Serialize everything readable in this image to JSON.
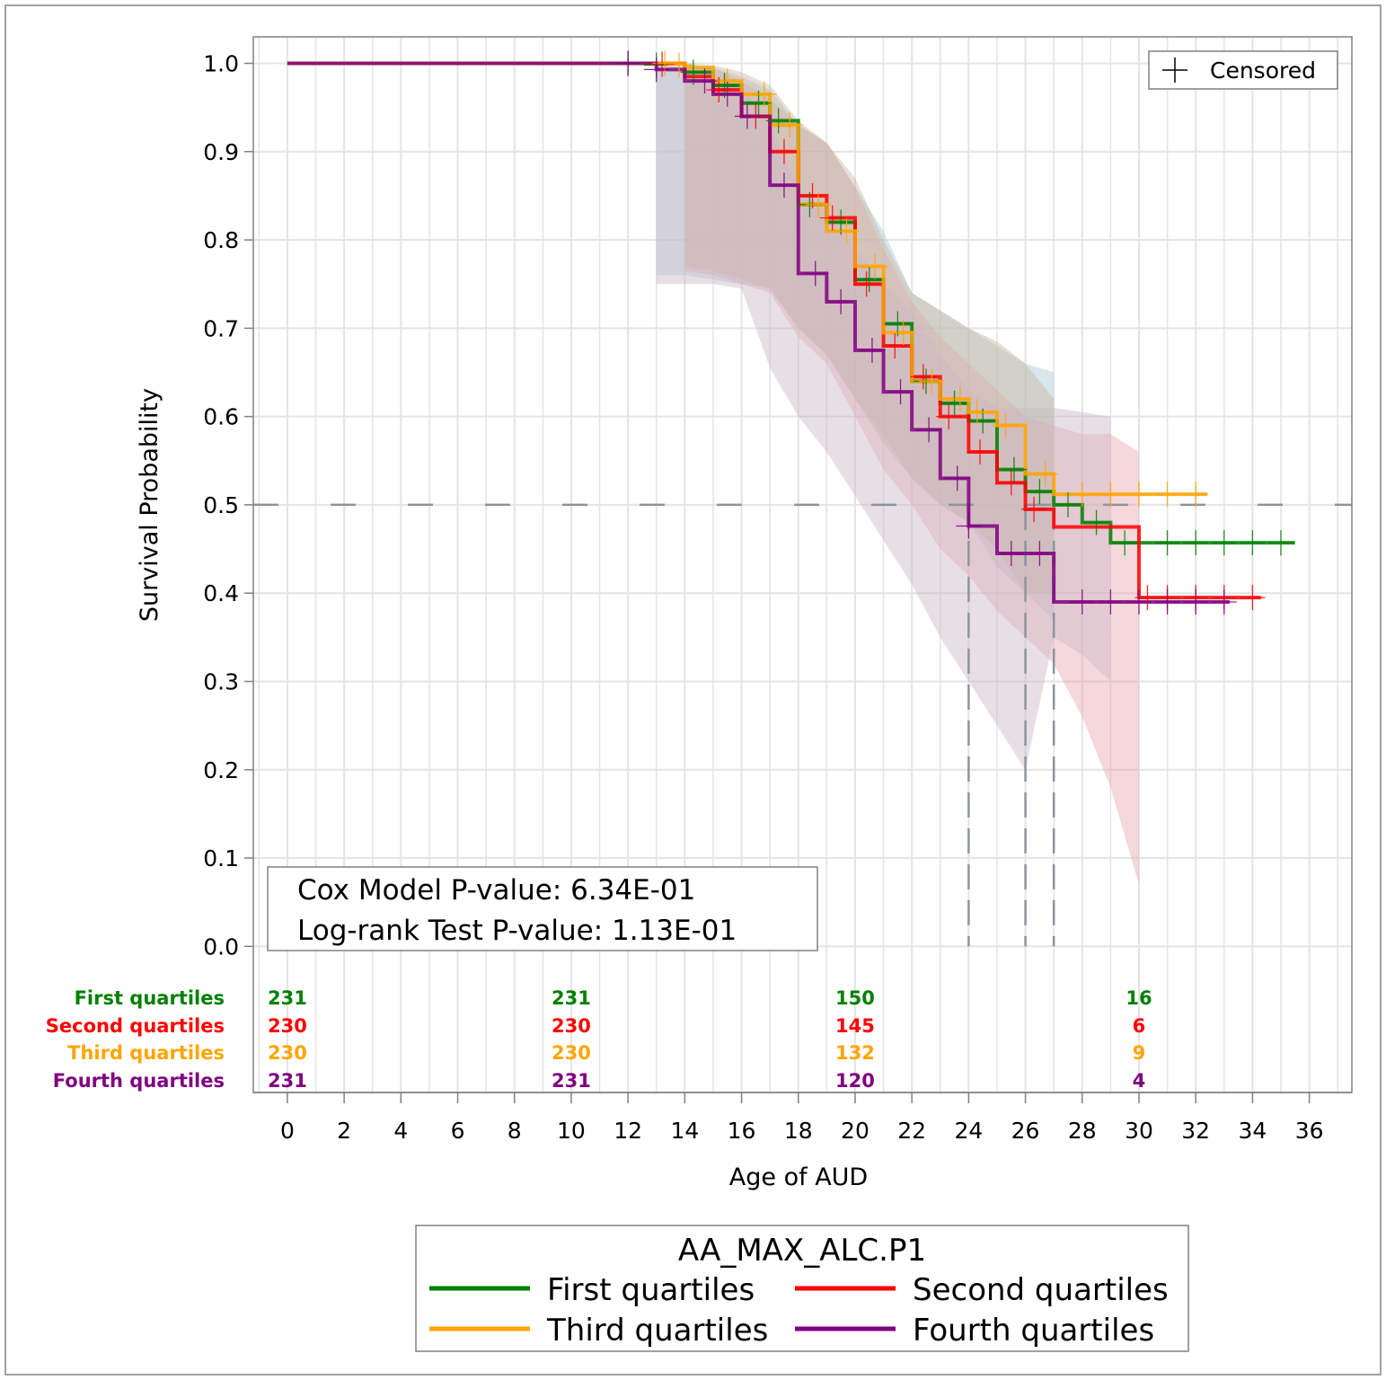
{
  "chart_data": {
    "type": "line",
    "subtype": "kaplan-meier survival curves with confidence bands, censor marks and number-at-risk table",
    "xlabel": "Age of AUD",
    "ylabel": "Survival Probability",
    "xlim": [
      -1.2,
      37.5
    ],
    "ylim": [
      -0.02,
      1.03
    ],
    "x_ticks": [
      0,
      2,
      4,
      6,
      8,
      10,
      12,
      14,
      16,
      18,
      20,
      22,
      24,
      26,
      28,
      30,
      32,
      34,
      36
    ],
    "y_ticks": [
      0.0,
      0.1,
      0.2,
      0.3,
      0.4,
      0.5,
      0.6,
      0.7,
      0.8,
      0.9,
      1.0
    ],
    "y_tick_labels": [
      "0.0",
      "0.1",
      "0.2",
      "0.3",
      "0.4",
      "0.5",
      "0.6",
      "0.7",
      "0.8",
      "0.9",
      "1.0"
    ],
    "grid": true,
    "median_reference": {
      "y": 0.5,
      "median_x": [
        24,
        26,
        27
      ]
    },
    "censor_legend": {
      "label": "Censored",
      "position": "top-right"
    },
    "stats_box": {
      "line1": "Cox Model P-value:  6.34E-01",
      "line2": "Log-rank Test P-value:  1.13E-01",
      "position": "bottom-left"
    },
    "legend": {
      "title": "AA_MAX_ALC.P1",
      "position": "bottom",
      "entries": [
        "First quartiles",
        "Second quartiles",
        "Third quartiles",
        "Fourth quartiles"
      ]
    },
    "series": [
      {
        "name": "First quartiles",
        "color": "#008000",
        "band_color": "#a9c8d6",
        "steps": [
          [
            0,
            1.0
          ],
          [
            14,
            0.99
          ],
          [
            15,
            0.975
          ],
          [
            16,
            0.955
          ],
          [
            17,
            0.935
          ],
          [
            18,
            0.84
          ],
          [
            19,
            0.82
          ],
          [
            20,
            0.755
          ],
          [
            21,
            0.705
          ],
          [
            22,
            0.64
          ],
          [
            23,
            0.615
          ],
          [
            24,
            0.595
          ],
          [
            25,
            0.54
          ],
          [
            26,
            0.515
          ],
          [
            27,
            0.5
          ],
          [
            28,
            0.48
          ],
          [
            29,
            0.457
          ],
          [
            35.5,
            0.457
          ]
        ],
        "band": [
          [
            13,
            1.0,
            0.76
          ],
          [
            14,
            0.999,
            0.76
          ],
          [
            15,
            0.995,
            0.755
          ],
          [
            16,
            0.985,
            0.75
          ],
          [
            17,
            0.97,
            0.745
          ],
          [
            18,
            0.93,
            0.7
          ],
          [
            19,
            0.91,
            0.67
          ],
          [
            20,
            0.86,
            0.62
          ],
          [
            21,
            0.81,
            0.58
          ],
          [
            22,
            0.74,
            0.53
          ],
          [
            23,
            0.72,
            0.5
          ],
          [
            24,
            0.7,
            0.48
          ],
          [
            25,
            0.68,
            0.43
          ],
          [
            26,
            0.66,
            0.4
          ],
          [
            27,
            0.65,
            0.37
          ]
        ],
        "censored": [
          [
            12,
            1.0
          ],
          [
            13,
            0.998
          ],
          [
            14.3,
            0.99
          ],
          [
            15.4,
            0.975
          ],
          [
            16.6,
            0.955
          ],
          [
            17.3,
            0.935
          ],
          [
            18.4,
            0.84
          ],
          [
            19.5,
            0.82
          ],
          [
            20.5,
            0.755
          ],
          [
            21.5,
            0.705
          ],
          [
            22.5,
            0.64
          ],
          [
            23.5,
            0.615
          ],
          [
            24.5,
            0.595
          ],
          [
            25.6,
            0.54
          ],
          [
            26.5,
            0.515
          ],
          [
            27.5,
            0.5
          ],
          [
            28.5,
            0.48
          ],
          [
            29.5,
            0.457
          ],
          [
            31,
            0.457
          ],
          [
            32,
            0.457
          ],
          [
            33,
            0.457
          ],
          [
            34,
            0.457
          ],
          [
            35,
            0.457
          ]
        ]
      },
      {
        "name": "Second quartiles",
        "color": "#ff0000",
        "band_color": "#e7a9b0",
        "steps": [
          [
            0,
            1.0
          ],
          [
            14,
            0.985
          ],
          [
            15,
            0.97
          ],
          [
            16,
            0.94
          ],
          [
            17,
            0.9
          ],
          [
            18,
            0.85
          ],
          [
            19,
            0.825
          ],
          [
            20,
            0.75
          ],
          [
            21,
            0.68
          ],
          [
            22,
            0.645
          ],
          [
            23,
            0.6
          ],
          [
            24,
            0.56
          ],
          [
            25,
            0.525
          ],
          [
            26,
            0.495
          ],
          [
            27,
            0.475
          ],
          [
            30,
            0.395
          ],
          [
            34.3,
            0.395
          ]
        ],
        "band": [
          [
            14,
            0.998,
            0.765
          ],
          [
            15,
            0.995,
            0.76
          ],
          [
            16,
            0.98,
            0.75
          ],
          [
            17,
            0.96,
            0.74
          ],
          [
            18,
            0.93,
            0.69
          ],
          [
            19,
            0.91,
            0.66
          ],
          [
            20,
            0.86,
            0.6
          ],
          [
            21,
            0.79,
            0.54
          ],
          [
            22,
            0.73,
            0.5
          ],
          [
            23,
            0.69,
            0.45
          ],
          [
            24,
            0.66,
            0.42
          ],
          [
            25,
            0.63,
            0.38
          ],
          [
            26,
            0.6,
            0.35
          ],
          [
            27,
            0.59,
            0.32
          ],
          [
            28,
            0.58,
            0.26
          ],
          [
            29,
            0.58,
            0.18
          ],
          [
            30,
            0.56,
            0.07
          ]
        ],
        "censored": [
          [
            13.2,
            0.999
          ],
          [
            15.2,
            0.97
          ],
          [
            16.5,
            0.94
          ],
          [
            17.5,
            0.9
          ],
          [
            18.5,
            0.85
          ],
          [
            19.2,
            0.825
          ],
          [
            20.4,
            0.75
          ],
          [
            21.4,
            0.68
          ],
          [
            22.4,
            0.645
          ],
          [
            23.3,
            0.6
          ],
          [
            24.4,
            0.56
          ],
          [
            25.5,
            0.525
          ],
          [
            26.3,
            0.495
          ],
          [
            30.3,
            0.395
          ],
          [
            31,
            0.395
          ],
          [
            32,
            0.395
          ],
          [
            33,
            0.395
          ],
          [
            34,
            0.395
          ]
        ]
      },
      {
        "name": "Third quartiles",
        "color": "#ffa500",
        "band_color": "#c9b89e",
        "steps": [
          [
            0,
            1.0
          ],
          [
            14,
            0.995
          ],
          [
            15,
            0.98
          ],
          [
            16,
            0.965
          ],
          [
            17,
            0.93
          ],
          [
            18,
            0.84
          ],
          [
            19,
            0.81
          ],
          [
            20,
            0.77
          ],
          [
            21,
            0.695
          ],
          [
            22,
            0.64
          ],
          [
            23,
            0.62
          ],
          [
            24,
            0.605
          ],
          [
            25,
            0.59
          ],
          [
            26,
            0.535
          ],
          [
            27,
            0.512
          ],
          [
            32.4,
            0.512
          ]
        ],
        "band": [
          [
            14,
            1.0,
            0.77
          ],
          [
            15,
            0.998,
            0.765
          ],
          [
            16,
            0.99,
            0.755
          ],
          [
            17,
            0.975,
            0.745
          ],
          [
            18,
            0.935,
            0.7
          ],
          [
            19,
            0.91,
            0.67
          ],
          [
            20,
            0.87,
            0.62
          ],
          [
            21,
            0.8,
            0.57
          ],
          [
            22,
            0.74,
            0.53
          ],
          [
            23,
            0.72,
            0.5
          ],
          [
            24,
            0.7,
            0.48
          ],
          [
            25,
            0.685,
            0.45
          ],
          [
            26,
            0.66,
            0.4
          ],
          [
            27,
            0.62,
            0.4
          ]
        ],
        "censored": [
          [
            13.3,
            1.0
          ],
          [
            13.8,
            0.998
          ],
          [
            15.5,
            0.98
          ],
          [
            16.8,
            0.965
          ],
          [
            17.7,
            0.93
          ],
          [
            18.7,
            0.84
          ],
          [
            19.7,
            0.81
          ],
          [
            20.7,
            0.77
          ],
          [
            21.7,
            0.695
          ],
          [
            22.7,
            0.64
          ],
          [
            23.7,
            0.62
          ],
          [
            24.3,
            0.605
          ],
          [
            25.3,
            0.59
          ],
          [
            26.7,
            0.535
          ],
          [
            28,
            0.512
          ],
          [
            29,
            0.512
          ],
          [
            30,
            0.512
          ],
          [
            31,
            0.512
          ],
          [
            32,
            0.512
          ]
        ]
      },
      {
        "name": "Fourth quartiles",
        "color": "#800080",
        "band_color": "#cdb8c8",
        "steps": [
          [
            0,
            1.0
          ],
          [
            13,
            0.993
          ],
          [
            14,
            0.98
          ],
          [
            15,
            0.965
          ],
          [
            16,
            0.94
          ],
          [
            17,
            0.862
          ],
          [
            18,
            0.762
          ],
          [
            19,
            0.73
          ],
          [
            20,
            0.675
          ],
          [
            21,
            0.628
          ],
          [
            22,
            0.585
          ],
          [
            23,
            0.53
          ],
          [
            24,
            0.476
          ],
          [
            25,
            0.445
          ],
          [
            27,
            0.39
          ],
          [
            33.2,
            0.39
          ]
        ],
        "band": [
          [
            13,
            1.0,
            0.75
          ],
          [
            14,
            0.995,
            0.75
          ],
          [
            15,
            0.99,
            0.75
          ],
          [
            16,
            0.975,
            0.745
          ],
          [
            17,
            0.93,
            0.655
          ],
          [
            18,
            0.86,
            0.6
          ],
          [
            19,
            0.83,
            0.56
          ],
          [
            20,
            0.79,
            0.51
          ],
          [
            21,
            0.75,
            0.46
          ],
          [
            22,
            0.72,
            0.41
          ],
          [
            23,
            0.67,
            0.35
          ],
          [
            24,
            0.63,
            0.3
          ],
          [
            25,
            0.61,
            0.25
          ],
          [
            26,
            0.61,
            0.2
          ],
          [
            27,
            0.61,
            0.35
          ],
          [
            28,
            0.605,
            0.33
          ],
          [
            29,
            0.6,
            0.3
          ]
        ],
        "censored": [
          [
            12,
            1.0
          ],
          [
            13,
            0.993
          ],
          [
            14.7,
            0.98
          ],
          [
            15.5,
            0.965
          ],
          [
            16.2,
            0.94
          ],
          [
            17.5,
            0.862
          ],
          [
            18.6,
            0.762
          ],
          [
            19.5,
            0.73
          ],
          [
            20.6,
            0.675
          ],
          [
            21.6,
            0.628
          ],
          [
            22.6,
            0.585
          ],
          [
            23.6,
            0.53
          ],
          [
            24,
            0.476
          ],
          [
            25.5,
            0.445
          ],
          [
            26.5,
            0.445
          ],
          [
            28,
            0.39
          ],
          [
            29,
            0.39
          ],
          [
            30,
            0.39
          ],
          [
            31,
            0.39
          ],
          [
            32,
            0.39
          ],
          [
            33,
            0.39
          ]
        ]
      }
    ],
    "at_risk": {
      "x": [
        0,
        10,
        20,
        30
      ],
      "rows": [
        {
          "label": "First quartiles",
          "color": "#008000",
          "values": [
            "231",
            "231",
            "150",
            "16"
          ]
        },
        {
          "label": "Second quartiles",
          "color": "#ff0000",
          "values": [
            "230",
            "230",
            "145",
            "6"
          ]
        },
        {
          "label": "Third quartiles",
          "color": "#ffa500",
          "values": [
            "230",
            "230",
            "132",
            "9"
          ]
        },
        {
          "label": "Fourth quartiles",
          "color": "#800080",
          "values": [
            "231",
            "231",
            "120",
            "4"
          ]
        }
      ]
    }
  }
}
